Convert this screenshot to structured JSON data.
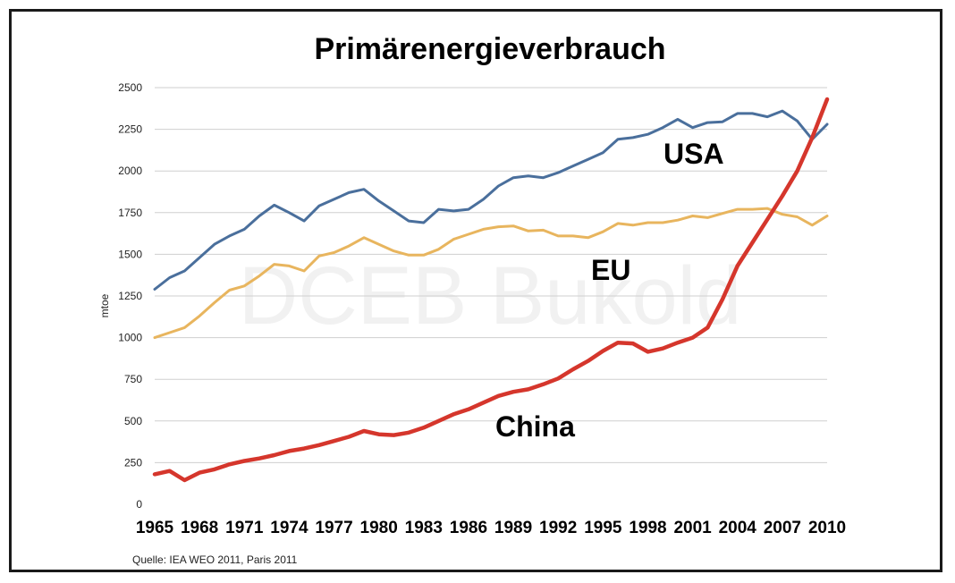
{
  "chart_data": {
    "type": "line",
    "title": "Primärenergieverbrauch",
    "ylabel": "mtoe",
    "xlabel": "",
    "ylim": [
      0,
      2500
    ],
    "yticks": [
      0,
      250,
      500,
      750,
      1000,
      1250,
      1500,
      1750,
      2000,
      2250,
      2500
    ],
    "xlim": [
      1965,
      2010
    ],
    "xticks": [
      1965,
      1968,
      1971,
      1974,
      1977,
      1980,
      1983,
      1986,
      1989,
      1992,
      1995,
      1998,
      2001,
      2004,
      2007,
      2010
    ],
    "grid": "horizontal",
    "watermark": "DCEB Bukold",
    "source": "Quelle:  IEA WEO 2011, Paris 2011",
    "x": [
      1965,
      1966,
      1967,
      1968,
      1969,
      1970,
      1971,
      1972,
      1973,
      1974,
      1975,
      1976,
      1977,
      1978,
      1979,
      1980,
      1981,
      1982,
      1983,
      1984,
      1985,
      1986,
      1987,
      1988,
      1989,
      1990,
      1991,
      1992,
      1993,
      1994,
      1995,
      1996,
      1997,
      1998,
      1999,
      2000,
      2001,
      2002,
      2003,
      2004,
      2005,
      2006,
      2007,
      2008,
      2009,
      2010
    ],
    "series": [
      {
        "name": "USA",
        "color": "#4a6f9c",
        "values": [
          1290,
          1360,
          1400,
          1480,
          1560,
          1610,
          1650,
          1730,
          1795,
          1750,
          1700,
          1790,
          1830,
          1870,
          1890,
          1820,
          1760,
          1700,
          1690,
          1770,
          1760,
          1770,
          1830,
          1910,
          1960,
          1970,
          1960,
          1990,
          2030,
          2070,
          2110,
          2190,
          2200,
          2220,
          2260,
          2310,
          2260,
          2290,
          2295,
          2345,
          2345,
          2325,
          2360,
          2300,
          2190,
          2280
        ]
      },
      {
        "name": "EU",
        "color": "#e8b55e",
        "values": [
          1000,
          1030,
          1060,
          1130,
          1210,
          1285,
          1310,
          1370,
          1440,
          1430,
          1400,
          1490,
          1510,
          1550,
          1600,
          1560,
          1520,
          1495,
          1495,
          1530,
          1590,
          1620,
          1650,
          1665,
          1670,
          1640,
          1645,
          1610,
          1610,
          1600,
          1635,
          1685,
          1675,
          1690,
          1690,
          1705,
          1730,
          1720,
          1745,
          1770,
          1770,
          1775,
          1740,
          1725,
          1675,
          1730
        ]
      },
      {
        "name": "China",
        "color": "#d5362c",
        "values": [
          180,
          200,
          145,
          190,
          210,
          240,
          260,
          275,
          295,
          320,
          335,
          355,
          380,
          405,
          440,
          420,
          415,
          430,
          460,
          500,
          540,
          570,
          610,
          650,
          675,
          690,
          720,
          755,
          810,
          860,
          920,
          970,
          965,
          915,
          935,
          970,
          1000,
          1060,
          1230,
          1430,
          1570,
          1710,
          1850,
          2000,
          2200,
          2430
        ]
      }
    ]
  }
}
